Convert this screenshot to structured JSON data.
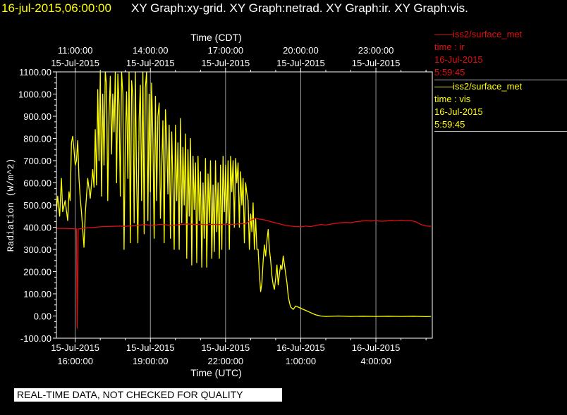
{
  "header": {
    "timestamp": "16-jul-2015,06:00:00",
    "graphs": "XY Graph:xy-grid.  XY Graph:netrad.  XY Graph:ir.  XY Graph:vis."
  },
  "legend": [
    {
      "series": "——iss2/surface_met",
      "var": "time : ir",
      "date": "16-Jul-2015",
      "time": "5:59:45",
      "color": "#e01010"
    },
    {
      "series": "——iss2/surface_met",
      "var": "time : vis",
      "date": "16-Jul-2015",
      "time": "5:59:45",
      "color": "#ffff00"
    }
  ],
  "disclaimer": "REAL-TIME DATA, NOT CHECKED FOR QUALITY",
  "chart_data": {
    "type": "line",
    "title": "",
    "ylabel": "Radiation (W/m^2)",
    "xlabel_bottom": "Time (UTC)",
    "xlabel_top": "Time (CDT)",
    "ylim": [
      -100,
      1100
    ],
    "xlim_hours_utc": [
      15.25,
      30.25
    ],
    "y_ticks": [
      -100,
      0,
      100,
      200,
      300,
      400,
      500,
      600,
      700,
      800,
      900,
      1000,
      1100
    ],
    "y_tick_labels": [
      "-100.00",
      "0.00",
      "100.00",
      "200.00",
      "300.00",
      "400.00",
      "500.00",
      "600.00",
      "700.00",
      "800.00",
      "900.00",
      "1000.00",
      "1100.00"
    ],
    "bottom_ticks": [
      {
        "date": "15-Jul-2015",
        "time": "16:00:00",
        "hour": 16
      },
      {
        "date": "15-Jul-2015",
        "time": "19:00:00",
        "hour": 19
      },
      {
        "date": "15-Jul-2015",
        "time": "22:00:00",
        "hour": 22
      },
      {
        "date": "16-Jul-2015",
        "time": "1:00:00",
        "hour": 25
      },
      {
        "date": "16-Jul-2015",
        "time": "4:00:00",
        "hour": 28
      }
    ],
    "top_ticks": [
      {
        "time": "11:00:00",
        "date": "15-Jul-2015",
        "hour": 16
      },
      {
        "time": "14:00:00",
        "date": "15-Jul-2015",
        "hour": 19
      },
      {
        "time": "17:00:00",
        "date": "15-Jul-2015",
        "hour": 22
      },
      {
        "time": "20:00:00",
        "date": "15-Jul-2015",
        "hour": 25
      },
      {
        "time": "23:00:00",
        "date": "15-Jul-2015",
        "hour": 28
      }
    ],
    "grid": true,
    "series": [
      {
        "name": "iss2/surface_met time : ir",
        "color": "#e01010",
        "points": [
          [
            15.25,
            395
          ],
          [
            15.5,
            395
          ],
          [
            15.8,
            394
          ],
          [
            16.0,
            393
          ],
          [
            16.05,
            392
          ],
          [
            16.08,
            -55
          ],
          [
            16.12,
            392
          ],
          [
            16.3,
            394
          ],
          [
            16.5,
            397
          ],
          [
            16.8,
            400
          ],
          [
            17.0,
            402
          ],
          [
            17.2,
            403
          ],
          [
            17.5,
            404
          ],
          [
            17.8,
            405
          ],
          [
            18.0,
            404
          ],
          [
            18.2,
            406
          ],
          [
            18.4,
            407
          ],
          [
            18.6,
            410
          ],
          [
            18.8,
            412
          ],
          [
            19.0,
            408
          ],
          [
            19.2,
            410
          ],
          [
            19.4,
            413
          ],
          [
            19.6,
            411
          ],
          [
            19.8,
            408
          ],
          [
            20.0,
            410
          ],
          [
            20.2,
            412
          ],
          [
            20.5,
            415
          ],
          [
            20.8,
            412
          ],
          [
            21.0,
            414
          ],
          [
            21.2,
            411
          ],
          [
            21.5,
            413
          ],
          [
            21.8,
            412
          ],
          [
            22.0,
            414
          ],
          [
            22.2,
            412
          ],
          [
            22.4,
            414
          ],
          [
            22.6,
            416
          ],
          [
            22.8,
            415
          ],
          [
            23.0,
            432
          ],
          [
            23.2,
            440
          ],
          [
            23.4,
            436
          ],
          [
            23.6,
            432
          ],
          [
            23.8,
            425
          ],
          [
            24.0,
            420
          ],
          [
            24.2,
            414
          ],
          [
            24.4,
            408
          ],
          [
            24.6,
            405
          ],
          [
            24.8,
            403
          ],
          [
            25.0,
            402
          ],
          [
            25.2,
            405
          ],
          [
            25.4,
            403
          ],
          [
            25.6,
            408
          ],
          [
            25.8,
            412
          ],
          [
            26.0,
            410
          ],
          [
            26.2,
            414
          ],
          [
            26.4,
            418
          ],
          [
            26.6,
            420
          ],
          [
            26.8,
            422
          ],
          [
            27.0,
            420
          ],
          [
            27.2,
            425
          ],
          [
            27.4,
            427
          ],
          [
            27.6,
            430
          ],
          [
            27.8,
            428
          ],
          [
            28.0,
            430
          ],
          [
            28.2,
            427
          ],
          [
            28.4,
            428
          ],
          [
            28.6,
            431
          ],
          [
            28.8,
            430
          ],
          [
            29.0,
            432
          ],
          [
            29.2,
            429
          ],
          [
            29.4,
            430
          ],
          [
            29.6,
            424
          ],
          [
            29.8,
            412
          ],
          [
            30.0,
            406
          ],
          [
            30.2,
            404
          ]
        ]
      },
      {
        "name": "iss2/surface_met time : vis",
        "color": "#ffff00",
        "points": [
          [
            15.25,
            470
          ],
          [
            15.3,
            540
          ],
          [
            15.38,
            450
          ],
          [
            15.45,
            620
          ],
          [
            15.5,
            470
          ],
          [
            15.6,
            520
          ],
          [
            15.7,
            430
          ],
          [
            15.75,
            560
          ],
          [
            15.8,
            520
          ],
          [
            15.85,
            780
          ],
          [
            15.9,
            810
          ],
          [
            15.95,
            750
          ],
          [
            16.0,
            680
          ],
          [
            16.05,
            700
          ],
          [
            16.1,
            790
          ],
          [
            16.15,
            620
          ],
          [
            16.2,
            530
          ],
          [
            16.25,
            470
          ],
          [
            16.3,
            390
          ],
          [
            16.35,
            310
          ],
          [
            16.4,
            460
          ],
          [
            16.5,
            620
          ],
          [
            16.6,
            530
          ],
          [
            16.7,
            660
          ],
          [
            16.75,
            580
          ],
          [
            16.8,
            840
          ],
          [
            16.85,
            590
          ],
          [
            16.9,
            1020
          ],
          [
            16.95,
            700
          ],
          [
            17.0,
            1100
          ],
          [
            17.05,
            540
          ],
          [
            17.1,
            1000
          ],
          [
            17.15,
            680
          ],
          [
            17.2,
            1100
          ],
          [
            17.25,
            1040
          ],
          [
            17.3,
            520
          ],
          [
            17.35,
            900
          ],
          [
            17.4,
            1080
          ],
          [
            17.45,
            730
          ],
          [
            17.5,
            1000
          ],
          [
            17.55,
            830
          ],
          [
            17.6,
            1100
          ],
          [
            17.65,
            600
          ],
          [
            17.7,
            1090
          ],
          [
            17.75,
            950
          ],
          [
            17.8,
            540
          ],
          [
            17.85,
            1100
          ],
          [
            17.9,
            1000
          ],
          [
            17.95,
            300
          ],
          [
            18.0,
            790
          ],
          [
            18.05,
            1010
          ],
          [
            18.1,
            620
          ],
          [
            18.15,
            1100
          ],
          [
            18.2,
            330
          ],
          [
            18.25,
            1060
          ],
          [
            18.3,
            990
          ],
          [
            18.35,
            420
          ],
          [
            18.4,
            1100
          ],
          [
            18.45,
            610
          ],
          [
            18.5,
            330
          ],
          [
            18.55,
            890
          ],
          [
            18.6,
            1040
          ],
          [
            18.65,
            520
          ],
          [
            18.7,
            1100
          ],
          [
            18.75,
            370
          ],
          [
            18.8,
            1030
          ],
          [
            18.85,
            1100
          ],
          [
            18.9,
            430
          ],
          [
            18.95,
            1000
          ],
          [
            19.0,
            560
          ],
          [
            19.05,
            1050
          ],
          [
            19.1,
            800
          ],
          [
            19.15,
            350
          ],
          [
            19.2,
            990
          ],
          [
            19.25,
            520
          ],
          [
            19.3,
            900
          ],
          [
            19.35,
            960
          ],
          [
            19.4,
            440
          ],
          [
            19.5,
            880
          ],
          [
            19.55,
            330
          ],
          [
            19.6,
            930
          ],
          [
            19.65,
            800
          ],
          [
            19.7,
            550
          ],
          [
            19.75,
            860
          ],
          [
            19.8,
            350
          ],
          [
            19.85,
            830
          ],
          [
            19.9,
            600
          ],
          [
            19.95,
            300
          ],
          [
            20.0,
            860
          ],
          [
            20.05,
            520
          ],
          [
            20.1,
            780
          ],
          [
            20.15,
            300
          ],
          [
            20.2,
            890
          ],
          [
            20.25,
            420
          ],
          [
            20.3,
            760
          ],
          [
            20.35,
            500
          ],
          [
            20.4,
            820
          ],
          [
            20.45,
            260
          ],
          [
            20.5,
            750
          ],
          [
            20.55,
            450
          ],
          [
            20.6,
            800
          ],
          [
            20.65,
            230
          ],
          [
            20.7,
            720
          ],
          [
            20.75,
            480
          ],
          [
            20.8,
            690
          ],
          [
            20.85,
            240
          ],
          [
            20.9,
            720
          ],
          [
            20.95,
            430
          ],
          [
            21.0,
            650
          ],
          [
            21.05,
            220
          ],
          [
            21.1,
            600
          ],
          [
            21.15,
            350
          ],
          [
            21.2,
            710
          ],
          [
            21.25,
            220
          ],
          [
            21.3,
            640
          ],
          [
            21.35,
            420
          ],
          [
            21.4,
            700
          ],
          [
            21.45,
            260
          ],
          [
            21.5,
            590
          ],
          [
            21.55,
            290
          ],
          [
            21.6,
            700
          ],
          [
            21.65,
            380
          ],
          [
            21.7,
            600
          ],
          [
            21.75,
            260
          ],
          [
            21.8,
            680
          ],
          [
            21.85,
            300
          ],
          [
            21.9,
            720
          ],
          [
            21.95,
            470
          ],
          [
            22.0,
            680
          ],
          [
            22.05,
            420
          ],
          [
            22.1,
            700
          ],
          [
            22.15,
            300
          ],
          [
            22.2,
            720
          ],
          [
            22.25,
            560
          ],
          [
            22.3,
            700
          ],
          [
            22.35,
            400
          ],
          [
            22.4,
            710
          ],
          [
            22.45,
            600
          ],
          [
            22.5,
            690
          ],
          [
            22.55,
            400
          ],
          [
            22.6,
            650
          ],
          [
            22.65,
            500
          ],
          [
            22.7,
            620
          ],
          [
            22.75,
            330
          ],
          [
            22.8,
            600
          ],
          [
            22.85,
            550
          ],
          [
            22.9,
            520
          ],
          [
            22.95,
            300
          ],
          [
            23.0,
            460
          ],
          [
            23.05,
            380
          ],
          [
            23.1,
            510
          ],
          [
            23.15,
            300
          ],
          [
            23.2,
            440
          ],
          [
            23.25,
            300
          ],
          [
            23.3,
            300
          ],
          [
            23.35,
            190
          ],
          [
            23.4,
            110
          ],
          [
            23.45,
            150
          ],
          [
            23.5,
            250
          ],
          [
            23.55,
            320
          ],
          [
            23.6,
            270
          ],
          [
            23.65,
            340
          ],
          [
            23.7,
            390
          ],
          [
            23.75,
            300
          ],
          [
            23.8,
            250
          ],
          [
            23.85,
            180
          ],
          [
            23.9,
            140
          ],
          [
            23.95,
            120
          ],
          [
            24.0,
            170
          ],
          [
            24.05,
            230
          ],
          [
            24.1,
            140
          ],
          [
            24.15,
            190
          ],
          [
            24.2,
            230
          ],
          [
            24.25,
            210
          ],
          [
            24.3,
            270
          ],
          [
            24.35,
            230
          ],
          [
            24.4,
            190
          ],
          [
            24.45,
            150
          ],
          [
            24.5,
            90
          ],
          [
            24.55,
            60
          ],
          [
            24.6,
            40
          ],
          [
            24.7,
            30
          ],
          [
            24.8,
            45
          ],
          [
            24.9,
            40
          ],
          [
            25.0,
            35
          ],
          [
            25.1,
            30
          ],
          [
            25.2,
            25
          ],
          [
            25.3,
            20
          ],
          [
            25.4,
            15
          ],
          [
            25.5,
            10
          ],
          [
            25.6,
            5
          ],
          [
            25.8,
            0
          ],
          [
            26.0,
            -2
          ],
          [
            26.5,
            0
          ],
          [
            27.0,
            -2
          ],
          [
            27.5,
            -1
          ],
          [
            28.0,
            -2
          ],
          [
            28.5,
            -1
          ],
          [
            29.0,
            -2
          ],
          [
            29.5,
            -1
          ],
          [
            30.0,
            -3
          ],
          [
            30.2,
            -2
          ]
        ]
      }
    ]
  }
}
